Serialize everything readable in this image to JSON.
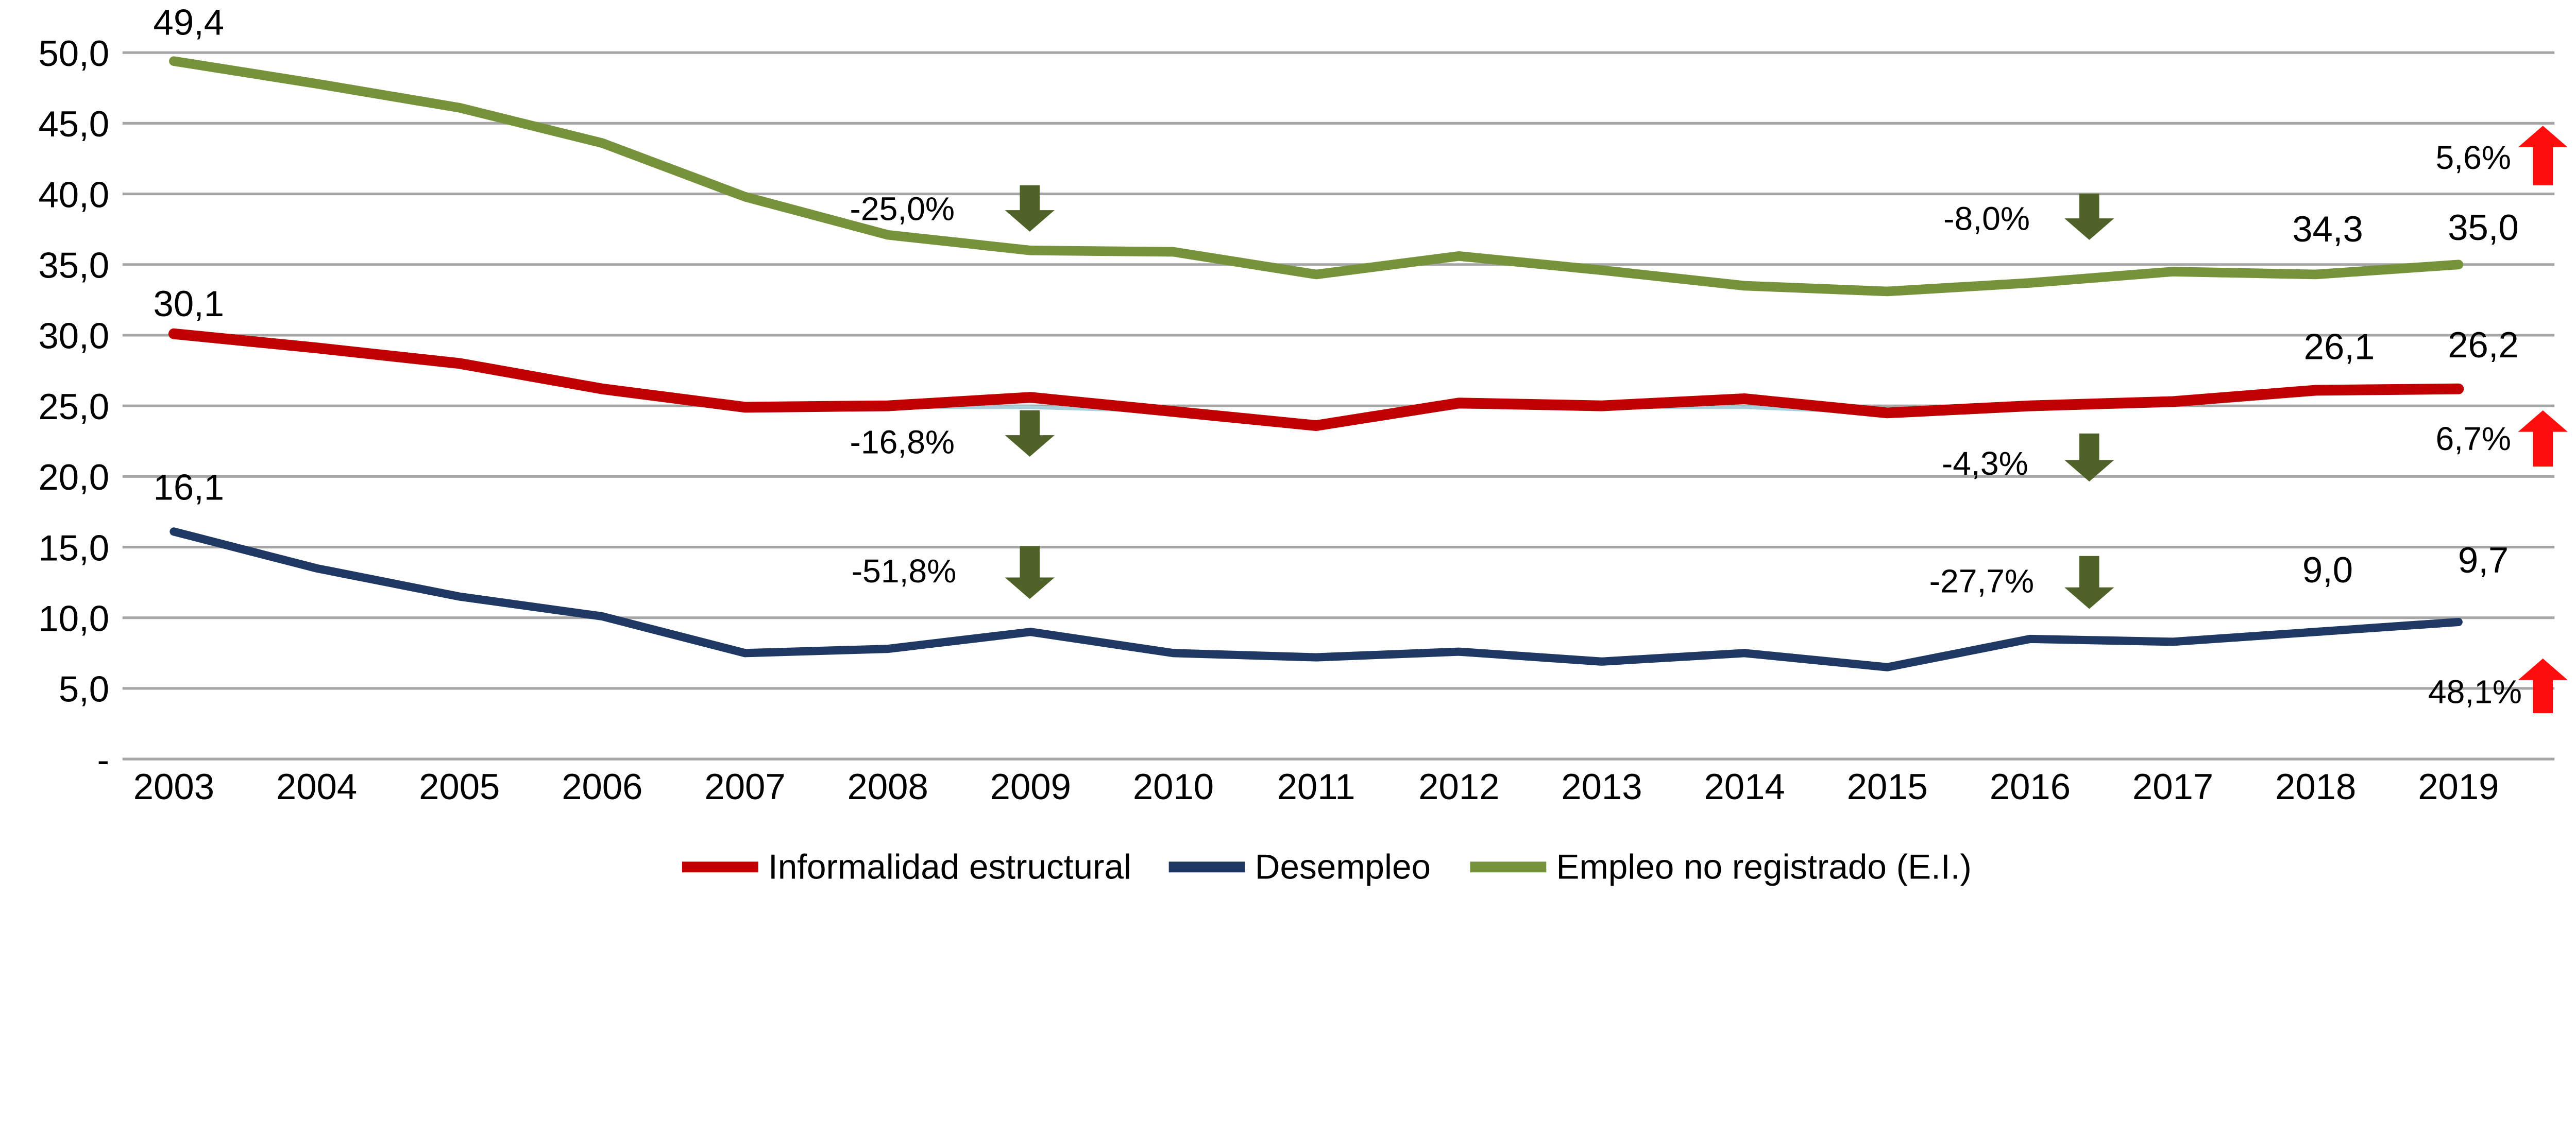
{
  "chart_data": {
    "type": "line",
    "title": "",
    "categories": [
      "2003",
      "2004",
      "2005",
      "2006",
      "2007",
      "2008",
      "2009",
      "2010",
      "2011",
      "2012",
      "2013",
      "2014",
      "2015",
      "2016",
      "2017",
      "2018",
      "2019"
    ],
    "series": [
      {
        "name": "Informalidad estructural",
        "color": "#C00000",
        "stroke_width": 6.5,
        "values": [
          30.1,
          29.1,
          28.0,
          26.2,
          24.9,
          25.0,
          25.6,
          24.6,
          23.6,
          25.2,
          25.0,
          25.5,
          24.5,
          25.0,
          25.3,
          26.1,
          26.2
        ]
      },
      {
        "name": "Desempleo",
        "color": "#1F3864",
        "stroke_width": 5.0,
        "values": [
          16.1,
          13.5,
          11.5,
          10.1,
          7.5,
          7.8,
          9.0,
          7.5,
          7.2,
          7.6,
          6.9,
          7.5,
          6.5,
          8.5,
          8.3,
          9.0,
          9.7
        ]
      },
      {
        "name": "Empleo no registrado (E.I.)",
        "color": "#76933C",
        "stroke_width": 5.8,
        "values": [
          49.4,
          47.8,
          46.1,
          43.6,
          39.8,
          37.1,
          36.0,
          35.9,
          34.3,
          35.6,
          34.6,
          33.5,
          33.1,
          33.7,
          34.5,
          34.3,
          35.0
        ]
      }
    ],
    "shadow_series": {
      "note": "pale teal line partially visible just under the red line between 2007 and 2016",
      "color": "#A9CFDA",
      "stroke_width": 2.2,
      "start_index": 4,
      "values": [
        24.9,
        24.9,
        24.9,
        24.6,
        23.6,
        24.9,
        24.9,
        24.9,
        24.5,
        24.9
      ]
    },
    "point_labels": [
      {
        "text": "49,4",
        "x": 114,
        "y": 21
      },
      {
        "text": "30,1",
        "x": 114,
        "y": 191
      },
      {
        "text": "16,1",
        "x": 114,
        "y": 302
      },
      {
        "text": "34,3",
        "x": 1406,
        "y": 146
      },
      {
        "text": "35,0",
        "x": 1500,
        "y": 145
      },
      {
        "text": "26,1",
        "x": 1413,
        "y": 217
      },
      {
        "text": "26,2",
        "x": 1500,
        "y": 216
      },
      {
        "text": "9,0",
        "x": 1406,
        "y": 352
      },
      {
        "text": "9,7",
        "x": 1500,
        "y": 346
      }
    ],
    "annotations": [
      {
        "text": "-25,0%",
        "direction": "down",
        "tx": 545,
        "ty": 133,
        "cx": 622,
        "yTop": 112,
        "yBot": 140
      },
      {
        "text": "-16,8%",
        "direction": "down",
        "tx": 545,
        "ty": 274,
        "cx": 622,
        "yTop": 248,
        "yBot": 276
      },
      {
        "text": "-51,8%",
        "direction": "down",
        "tx": 546,
        "ty": 352,
        "cx": 622,
        "yTop": 330,
        "yBot": 362
      },
      {
        "text": "-8,0%",
        "direction": "down",
        "tx": 1200,
        "ty": 139,
        "cx": 1262,
        "yTop": 117,
        "yBot": 145
      },
      {
        "text": "-4,3%",
        "direction": "down",
        "tx": 1199,
        "ty": 287,
        "cx": 1262,
        "yTop": 262,
        "yBot": 291
      },
      {
        "text": "-27,7%",
        "direction": "down",
        "tx": 1197,
        "ty": 358,
        "cx": 1262,
        "yTop": 336,
        "yBot": 368
      },
      {
        "text": "5,6%",
        "direction": "up",
        "tx": 1494,
        "ty": 102,
        "cx": 1536,
        "yTop": 76,
        "yBot": 112
      },
      {
        "text": "6,7%",
        "direction": "up",
        "tx": 1494,
        "ty": 272,
        "cx": 1536,
        "yTop": 248,
        "yBot": 282
      },
      {
        "text": "48,1%",
        "direction": "up",
        "tx": 1495,
        "ty": 425,
        "cx": 1536,
        "yTop": 398,
        "yBot": 431
      }
    ],
    "y_axis": {
      "min": 0,
      "max": 50,
      "step": 5,
      "grid": true,
      "tick_labels": [
        "50,0",
        "45,0",
        "40,0",
        "35,0",
        "30,0",
        "25,0",
        "20,0",
        "15,0",
        "10,0",
        "5,0",
        "-"
      ],
      "tick_values": [
        50,
        45,
        40,
        35,
        30,
        25,
        20,
        15,
        10,
        5,
        0
      ]
    },
    "legend_position": "bottom",
    "colors": {
      "arrow_down": "#4F6228",
      "arrow_up": "#FE0D0D",
      "gridline": "#A6A6A6",
      "text": "#000000",
      "background": "#FFFFFF"
    }
  }
}
